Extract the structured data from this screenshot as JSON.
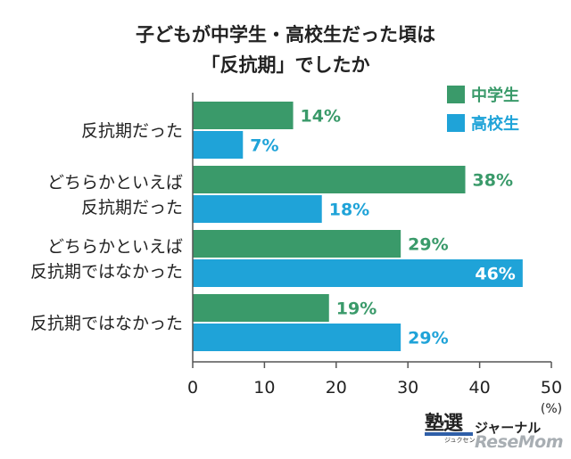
{
  "title_lines": [
    "子どもが中学生・高校生だった頃は",
    "「反抗期」でしたか"
  ],
  "unit_label": "(%)",
  "logo": {
    "main": "塾選",
    "sub": "ジャーナル",
    "small": "ジュクセン",
    "watermark": "ReseMom"
  },
  "colors": {
    "middle": "#3a9a6a",
    "high": "#1fa3d8",
    "axis": "#555555",
    "text": "#222222"
  },
  "chart_data": {
    "type": "bar",
    "orientation": "horizontal",
    "title": "子どもが中学生・高校生だった頃は「反抗期」でしたか",
    "categories": [
      [
        "反抗期だった"
      ],
      [
        "どちらかといえば",
        "反抗期だった"
      ],
      [
        "どちらかといえば",
        "反抗期ではなかった"
      ],
      [
        "反抗期ではなかった"
      ]
    ],
    "series": [
      {
        "name": "中学生",
        "values": [
          14,
          38,
          29,
          19
        ],
        "labels": [
          "14%",
          "38%",
          "29%",
          "19%"
        ]
      },
      {
        "name": "高校生",
        "values": [
          7,
          18,
          46,
          29
        ],
        "labels": [
          "7%",
          "18%",
          "46%",
          "29%"
        ]
      }
    ],
    "xlim": [
      0,
      50
    ],
    "xticks": [
      "0",
      "10",
      "20",
      "30",
      "40",
      "50"
    ],
    "xlabel": "(%)",
    "legend_position": "top-right",
    "grid": false
  }
}
